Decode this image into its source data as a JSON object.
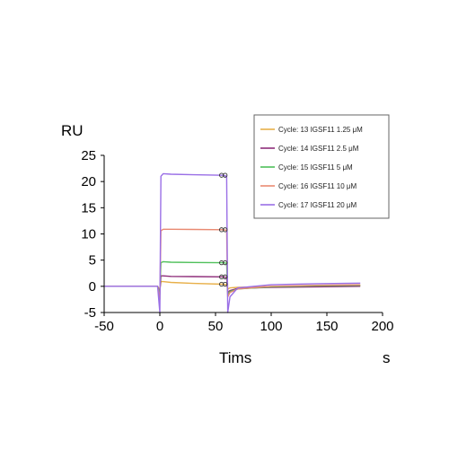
{
  "chart_data": {
    "type": "line",
    "title": "",
    "xlabel": "Tims",
    "xunit": "s",
    "ylabel": "RU",
    "xlim": [
      -50,
      200
    ],
    "ylim": [
      -5,
      25
    ],
    "xticks": [
      -50,
      0,
      50,
      100,
      150,
      200
    ],
    "yticks": [
      -5,
      0,
      5,
      10,
      15,
      20,
      25
    ],
    "grid": false,
    "legend_position": "top-right",
    "marker_x": [
      57,
      57
    ],
    "series": [
      {
        "name": "Cycle: 13 IGSF11 1.25 μM",
        "color": "#e8b04a",
        "x": [
          -50,
          -2,
          0,
          1,
          3,
          10,
          30,
          57,
          60,
          61,
          63,
          70,
          100,
          140,
          180
        ],
        "y": [
          0,
          0,
          -0.6,
          0.9,
          0.9,
          0.75,
          0.55,
          0.4,
          0.3,
          -0.5,
          -0.3,
          -0.2,
          -0.05,
          0.05,
          0.1
        ]
      },
      {
        "name": "Cycle: 14 IGSF11 2.5 μM",
        "color": "#8e2d7a",
        "x": [
          -50,
          -2,
          0,
          1,
          3,
          10,
          30,
          57,
          60,
          61,
          63,
          70,
          100,
          140,
          180
        ],
        "y": [
          0,
          0,
          -1.2,
          2.0,
          2.0,
          1.9,
          1.85,
          1.8,
          1.7,
          -1.2,
          -0.8,
          -0.4,
          -0.2,
          -0.1,
          0.0
        ]
      },
      {
        "name": "Cycle: 15 IGSF11 5 μM",
        "color": "#4fc05a",
        "x": [
          -50,
          -2,
          0,
          1,
          3,
          10,
          30,
          57,
          60,
          61,
          63,
          70,
          100,
          140,
          180
        ],
        "y": [
          0,
          0,
          -1.5,
          4.5,
          4.7,
          4.6,
          4.55,
          4.5,
          4.4,
          -1.5,
          -1.0,
          -0.5,
          -0.1,
          0.1,
          0.2
        ]
      },
      {
        "name": "Cycle: 16 IGSF11 10 μM",
        "color": "#e98a72",
        "x": [
          -50,
          -2,
          0,
          1,
          3,
          10,
          30,
          57,
          60,
          61,
          63,
          70,
          100,
          140,
          180
        ],
        "y": [
          0,
          0,
          -2.5,
          10.6,
          10.9,
          10.9,
          10.85,
          10.8,
          10.7,
          -2.0,
          -1.2,
          -0.5,
          0.0,
          0.2,
          0.3
        ]
      },
      {
        "name": "Cycle: 17 IGSF11 20 μM",
        "color": "#9a6fe6",
        "x": [
          -50,
          -2,
          0,
          1,
          3,
          10,
          30,
          57,
          60,
          61,
          63,
          70,
          100,
          140,
          180
        ],
        "y": [
          0,
          0,
          -5,
          21.0,
          21.5,
          21.4,
          21.3,
          21.2,
          21.0,
          -5,
          -2.0,
          -0.3,
          0.3,
          0.5,
          0.6
        ]
      }
    ]
  }
}
